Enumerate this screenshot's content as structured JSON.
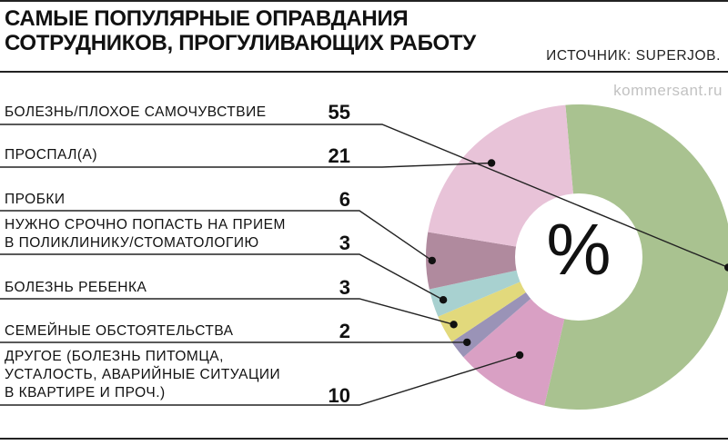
{
  "header": {
    "title": "САМЫЕ ПОПУЛЯРНЫЕ ОПРАВДАНИЯ СОТРУДНИКОВ, ПРОГУЛИВАЮЩИХ РАБОТУ",
    "source": "ИСТОЧНИК: SUPERJOB.",
    "watermark": "kommersant.ru"
  },
  "center_label": "%",
  "chart_data": {
    "type": "pie",
    "unit": "%",
    "title": "САМЫЕ ПОПУЛЯРНЫЕ ОПРАВДАНИЯ СОТРУДНИКОВ, ПРОГУЛИВАЮЩИХ РАБОТУ",
    "categories": [
      "БОЛЕЗНЬ/ПЛОХОЕ САМОЧУВСТВИЕ",
      "ПРОСПАЛ(А)",
      "ПРОБКИ",
      "НУЖНО СРОЧНО ПОПАСТЬ НА ПРИЕМ В ПОЛИКЛИНИКУ/СТОМАТОЛОГИЮ",
      "БОЛЕЗНЬ РЕБЕНКА",
      "СЕМЕЙНЫЕ ОБСТОЯТЕЛЬСТВА",
      "ДРУГОЕ (БОЛЕЗНЬ ПИТОМЦА, УСТАЛОСТЬ, АВАРИЙНЫЕ СИТУАЦИИ В КВАРТИРЕ И ПРОЧ.)"
    ],
    "values": [
      55,
      21,
      6,
      3,
      3,
      2,
      10
    ],
    "colors": [
      "#a9c290",
      "#e8c3d8",
      "#b08a9e",
      "#a8d1d0",
      "#e2d97c",
      "#9a93b7",
      "#d9a0c4"
    ],
    "labels": [
      {
        "lines": [
          "БОЛЕЗНЬ/ПЛОХОЕ САМОЧУВСТВИЕ"
        ],
        "value": "55"
      },
      {
        "lines": [
          "ПРОСПАЛ(А)"
        ],
        "value": "21"
      },
      {
        "lines": [
          "ПРОБКИ"
        ],
        "value": "6"
      },
      {
        "lines": [
          "НУЖНО СРОЧНО ПОПАСТЬ НА ПРИЕМ",
          "В ПОЛИКЛИНИКУ/СТОМАТОЛОГИЮ"
        ],
        "value": "3"
      },
      {
        "lines": [
          "БОЛЕЗНЬ РЕБЕНКА"
        ],
        "value": "3"
      },
      {
        "lines": [
          "СЕМЕЙНЫЕ ОБСТОЯТЕЛЬСТВА"
        ],
        "value": "2"
      },
      {
        "lines": [
          "ДРУГОЕ (БОЛЕЗНЬ ПИТОМЦА,",
          "УСТАЛОСТЬ, АВАРИЙНЫЕ СИТУАЦИИ",
          "В КВАРТИРЕ И ПРОЧ.)"
        ],
        "value": "10"
      }
    ]
  }
}
